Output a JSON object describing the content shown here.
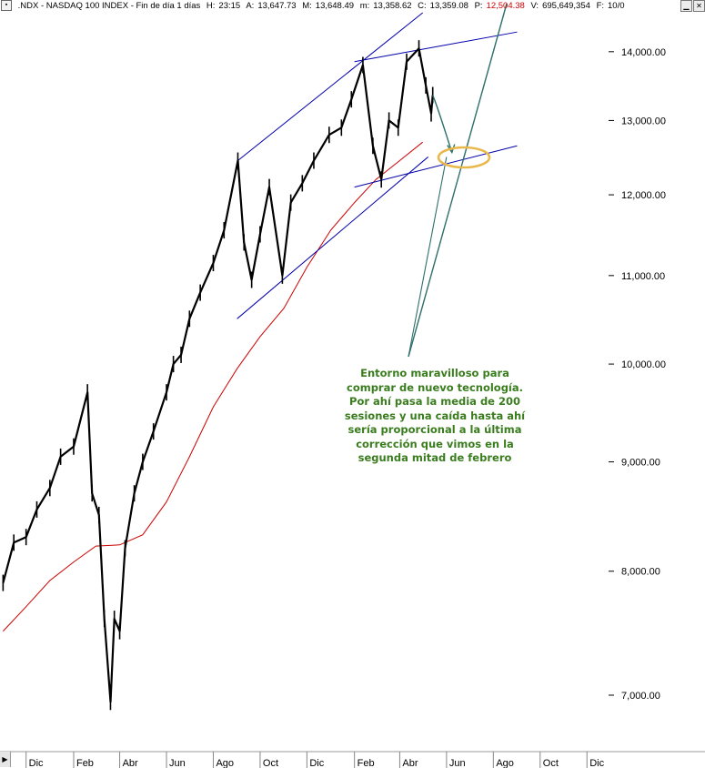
{
  "header": {
    "symbol": ".NDX - NASDAQ 100 INDEX - Fin de día 1 días",
    "h_label": "H:",
    "h_value": "23:15",
    "a_label": "A:",
    "a_value": "13,647.73",
    "m_label": "M:",
    "m_value": "13,648.49",
    "min_label": "m:",
    "min_value": "13,358.62",
    "c_label": "C:",
    "c_value": "13,359.08",
    "p_label": "P:",
    "p_value": "12,504.38",
    "v_label": "V:",
    "v_value": "695,649,354",
    "f_label": "F:",
    "f_value": "10/0"
  },
  "annotation": {
    "lines": [
      "Entorno maravilloso para",
      "comprar de nuevo tecnología.",
      "Por ahí pasa la media de 200",
      "sesiones y una caída hasta ahí",
      "sería proporcional a la última",
      "corrección que vimos en la",
      "segunda mitad de febrero"
    ],
    "color": "#3a7d1e"
  },
  "colors": {
    "price": "#000000",
    "ma200": "#cc0000",
    "channel": "#0000aa",
    "arrow": "#2e6e6a",
    "highlight": "#e8b84a"
  },
  "chart_data": {
    "type": "line",
    "title": ".NDX - NASDAQ 100 INDEX",
    "y_scale": "log",
    "ylim": [
      6600,
      14600
    ],
    "y_ticks": [
      "7,000.00",
      "8,000.00",
      "9,000.00",
      "10,000.00",
      "11,000.00",
      "12,000.00",
      "13,000.00",
      "14,000.00"
    ],
    "y_tick_values": [
      7000,
      8000,
      9000,
      10000,
      11000,
      12000,
      13000,
      14000
    ],
    "x_ticks": [
      "Dic",
      "Feb",
      "Abr",
      "Jun",
      "Ago",
      "Oct",
      "Dic",
      "Feb",
      "Abr",
      "Jun",
      "Ago",
      "Oct",
      "Dic"
    ],
    "x_tick_dates": [
      "2019-12-01",
      "2020-02-01",
      "2020-04-01",
      "2020-06-01",
      "2020-08-01",
      "2020-10-01",
      "2020-12-01",
      "2021-02-01",
      "2021-04-01",
      "2021-06-01",
      "2021-08-01",
      "2021-10-01",
      "2021-12-01"
    ],
    "series": [
      {
        "kind": "price",
        "points": [
          [
            "2019-11-01",
            7900
          ],
          [
            "2019-11-15",
            8250
          ],
          [
            "2019-12-01",
            8300
          ],
          [
            "2019-12-15",
            8550
          ],
          [
            "2020-01-01",
            8750
          ],
          [
            "2020-01-15",
            9050
          ],
          [
            "2020-02-01",
            9150
          ],
          [
            "2020-02-19",
            9700
          ],
          [
            "2020-02-25",
            8700
          ],
          [
            "2020-03-05",
            8500
          ],
          [
            "2020-03-12",
            7600
          ],
          [
            "2020-03-20",
            6950
          ],
          [
            "2020-03-25",
            7600
          ],
          [
            "2020-04-01",
            7500
          ],
          [
            "2020-04-08",
            8200
          ],
          [
            "2020-04-20",
            8700
          ],
          [
            "2020-05-01",
            9000
          ],
          [
            "2020-05-15",
            9300
          ],
          [
            "2020-06-01",
            9700
          ],
          [
            "2020-06-10",
            10000
          ],
          [
            "2020-06-20",
            10100
          ],
          [
            "2020-07-01",
            10500
          ],
          [
            "2020-07-15",
            10800
          ],
          [
            "2020-08-01",
            11150
          ],
          [
            "2020-08-15",
            11550
          ],
          [
            "2020-09-02",
            12450
          ],
          [
            "2020-09-10",
            11400
          ],
          [
            "2020-09-20",
            10950
          ],
          [
            "2020-10-01",
            11500
          ],
          [
            "2020-10-13",
            12100
          ],
          [
            "2020-10-30",
            11000
          ],
          [
            "2020-11-10",
            11900
          ],
          [
            "2020-11-25",
            12150
          ],
          [
            "2020-12-10",
            12450
          ],
          [
            "2020-12-30",
            12800
          ],
          [
            "2021-01-15",
            12900
          ],
          [
            "2021-01-28",
            13300
          ],
          [
            "2021-02-12",
            13800
          ],
          [
            "2021-02-25",
            12650
          ],
          [
            "2021-03-08",
            12200
          ],
          [
            "2021-03-18",
            13000
          ],
          [
            "2021-03-30",
            12900
          ],
          [
            "2021-04-10",
            13850
          ],
          [
            "2021-04-26",
            14050
          ],
          [
            "2021-05-05",
            13500
          ],
          [
            "2021-05-12",
            13100
          ],
          [
            "2021-05-14",
            13360
          ]
        ]
      },
      {
        "kind": "ma200",
        "name": "",
        "points": [
          [
            "2019-11-01",
            7500
          ],
          [
            "2019-12-01",
            7700
          ],
          [
            "2020-01-01",
            7920
          ],
          [
            "2020-02-01",
            8080
          ],
          [
            "2020-03-01",
            8220
          ],
          [
            "2020-04-01",
            8230
          ],
          [
            "2020-05-01",
            8320
          ],
          [
            "2020-06-01",
            8620
          ],
          [
            "2020-07-01",
            9050
          ],
          [
            "2020-08-01",
            9550
          ],
          [
            "2020-09-01",
            9950
          ],
          [
            "2020-10-01",
            10300
          ],
          [
            "2020-11-01",
            10620
          ],
          [
            "2020-12-01",
            11100
          ],
          [
            "2021-01-01",
            11550
          ],
          [
            "2021-02-01",
            11900
          ],
          [
            "2021-03-01",
            12200
          ],
          [
            "2021-04-01",
            12450
          ],
          [
            "2021-05-01",
            12700
          ]
        ]
      }
    ],
    "trendlines": [
      {
        "from": [
          "2020-09-02",
          12450
        ],
        "to": [
          "2021-05-01",
          14600
        ]
      },
      {
        "from": [
          "2020-09-01",
          10500
        ],
        "to": [
          "2021-05-08",
          12500
        ]
      },
      {
        "from": [
          "2021-02-01",
          13850
        ],
        "to": [
          "2021-09-01",
          14300
        ]
      },
      {
        "from": [
          "2021-02-01",
          12100
        ],
        "to": [
          "2021-09-01",
          12650
        ]
      }
    ],
    "grid": false
  }
}
